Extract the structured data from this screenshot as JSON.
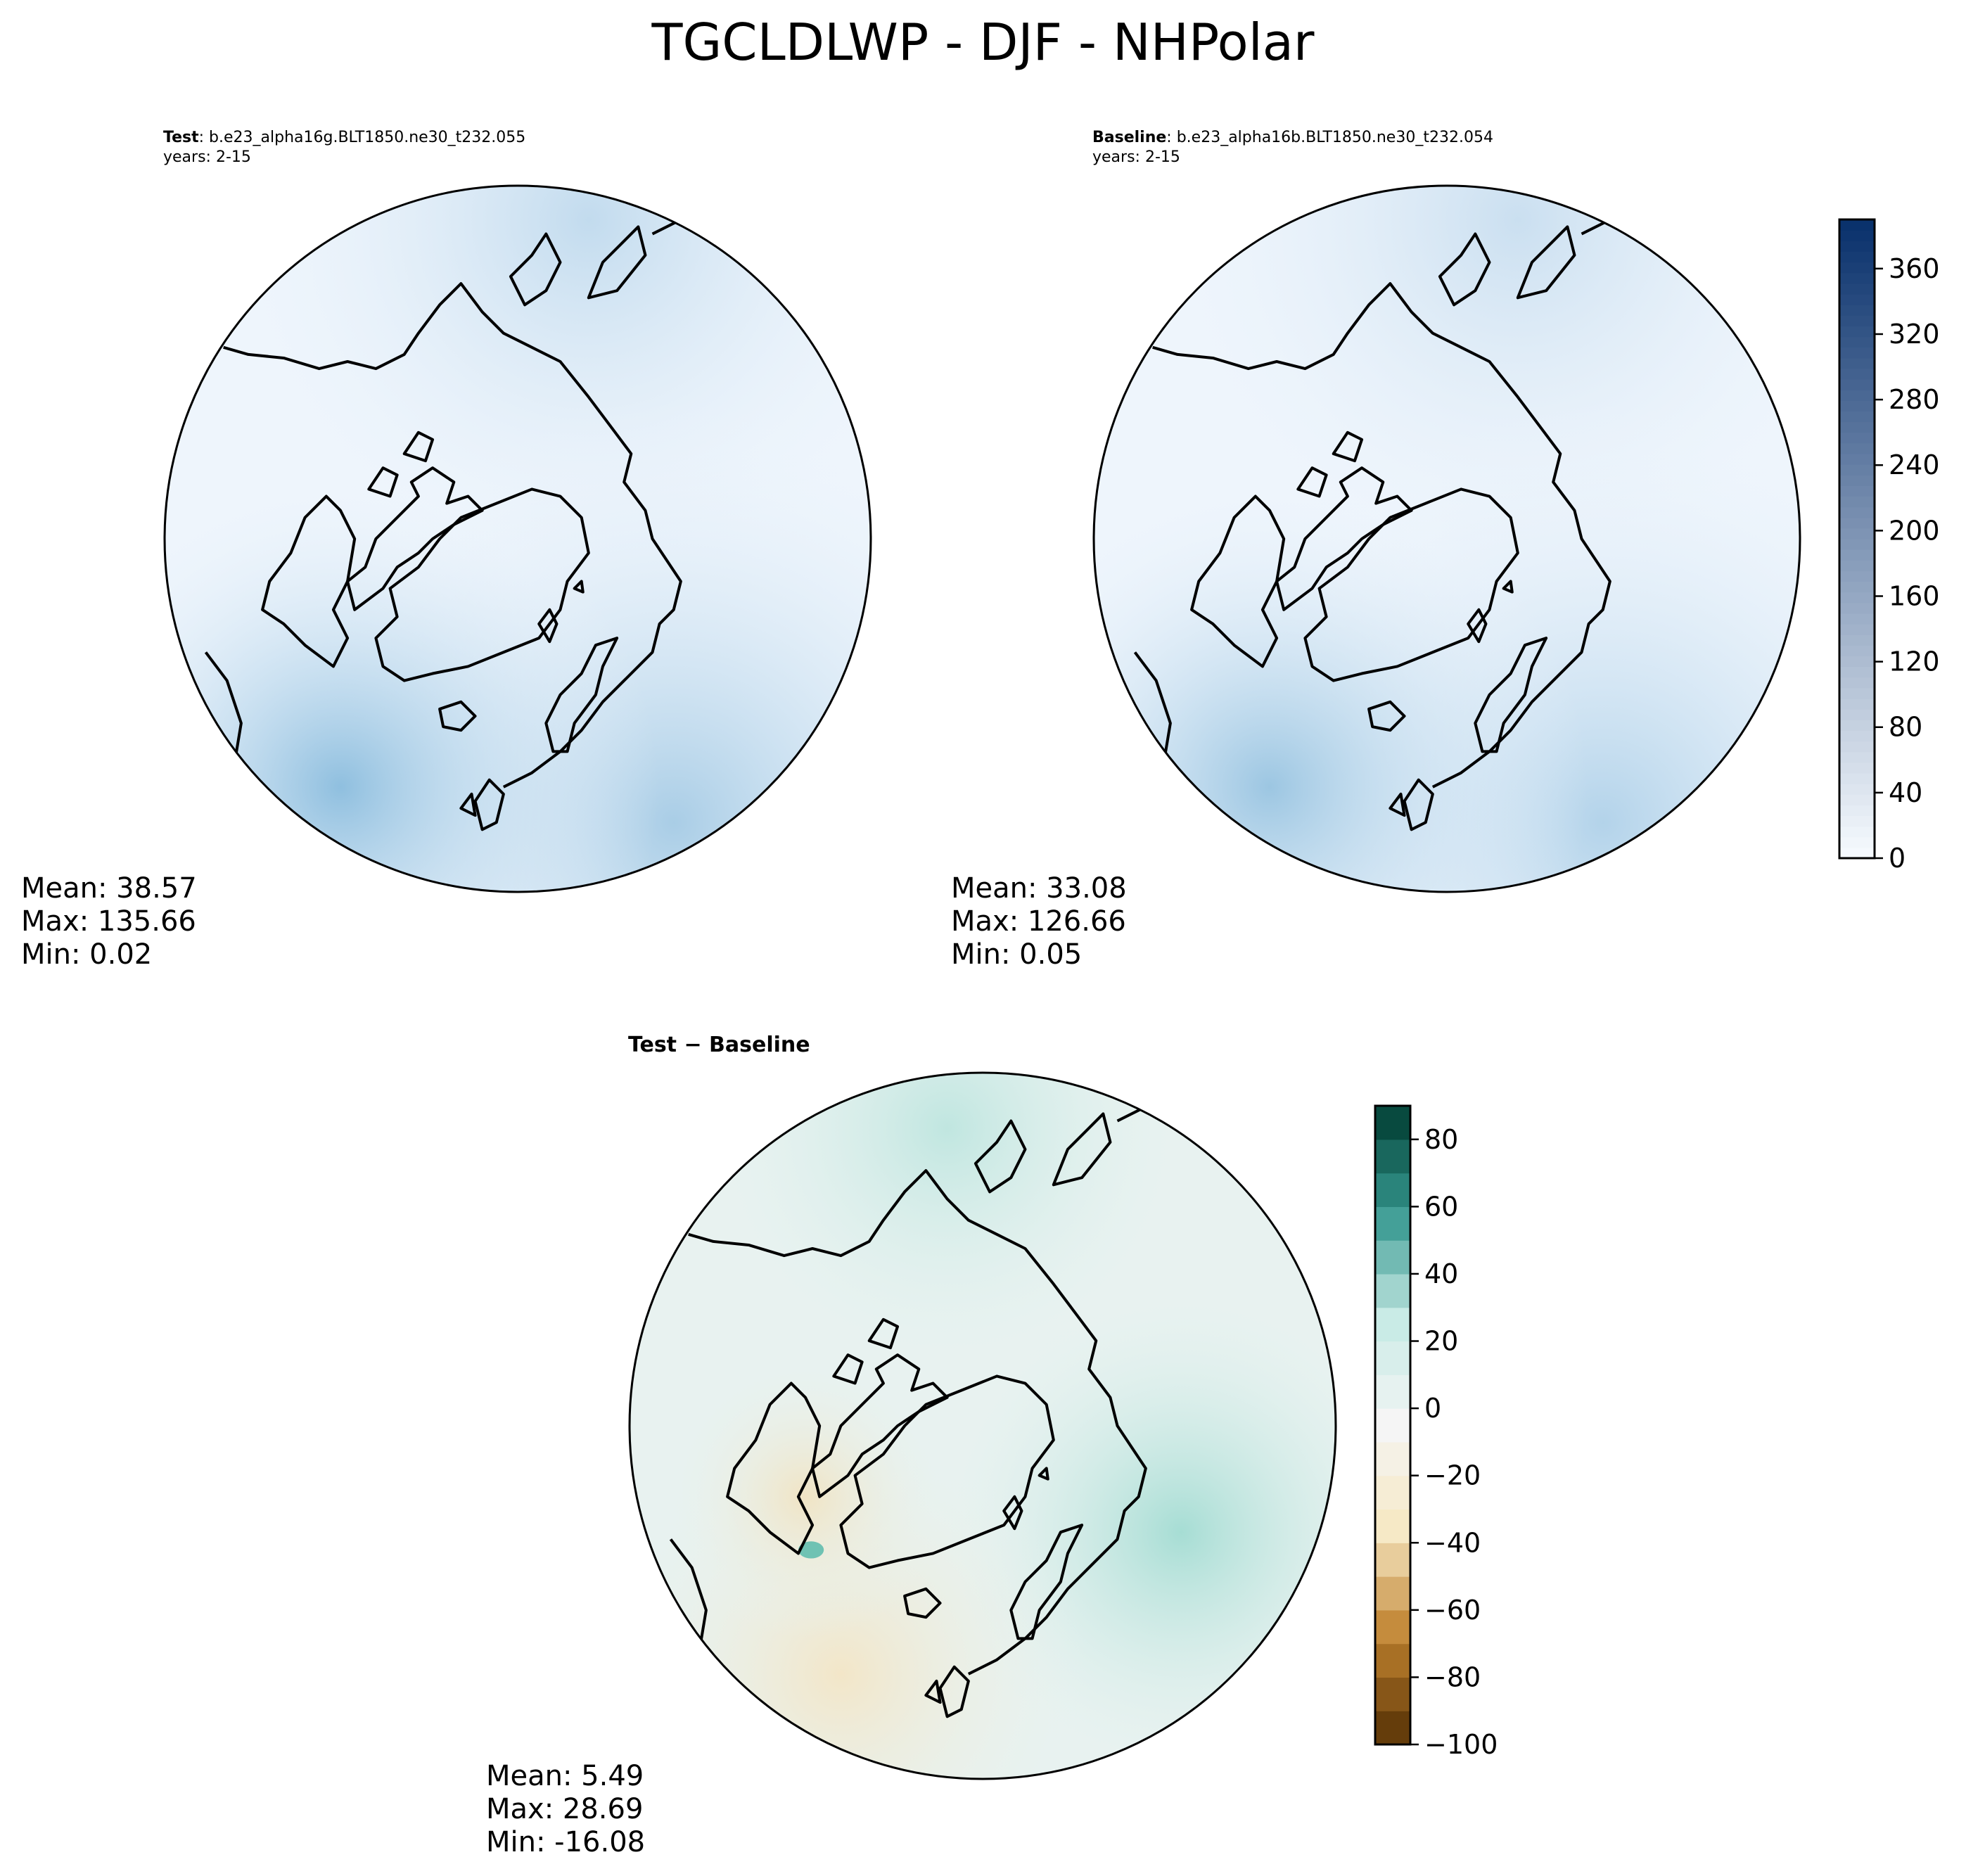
{
  "figure": {
    "title": "TGCLDLWP - DJF - NHPolar"
  },
  "panels": {
    "test": {
      "label_bold": "Test",
      "label_rest": ": b.e23_alpha16g.BLT1850.ne30_t232.055",
      "years": "years: 2-15",
      "stats": {
        "mean_label": "Mean: 38.57",
        "max_label": "Max: 135.66",
        "min_label": "Min:  0.02"
      }
    },
    "baseline": {
      "label_bold": "Baseline",
      "label_rest": ": b.e23_alpha16b.BLT1850.ne30_t232.054",
      "years": "years: 2-15",
      "stats": {
        "mean_label": "Mean: 33.08",
        "max_label": "Max: 126.66",
        "min_label": "Min:  0.05"
      }
    },
    "difference": {
      "label": "Test − Baseline",
      "stats": {
        "mean_label": "Mean:  5.49",
        "max_label": "Max: 28.69",
        "min_label": "Min: -16.08"
      }
    }
  },
  "colorbars": {
    "abs": {
      "min": 0,
      "max": 390,
      "ticks": [
        "0",
        "40",
        "80",
        "120",
        "160",
        "200",
        "240",
        "280",
        "320",
        "360"
      ],
      "colormap": "Blues",
      "colors": [
        "#f7fbff",
        "#08306b"
      ]
    },
    "diff": {
      "min": -100,
      "max": 90,
      "ticks": [
        "80",
        "60",
        "40",
        "20",
        "0",
        "−20",
        "−40",
        "−60",
        "−80",
        "−100"
      ],
      "colormap": "BrBG",
      "colors": [
        "#543005",
        "#bf812d",
        "#f6e8c3",
        "#f5f5f5",
        "#c7eae5",
        "#35978f",
        "#003c30"
      ]
    }
  },
  "legend": {
    "coastline_color": "#000000"
  }
}
